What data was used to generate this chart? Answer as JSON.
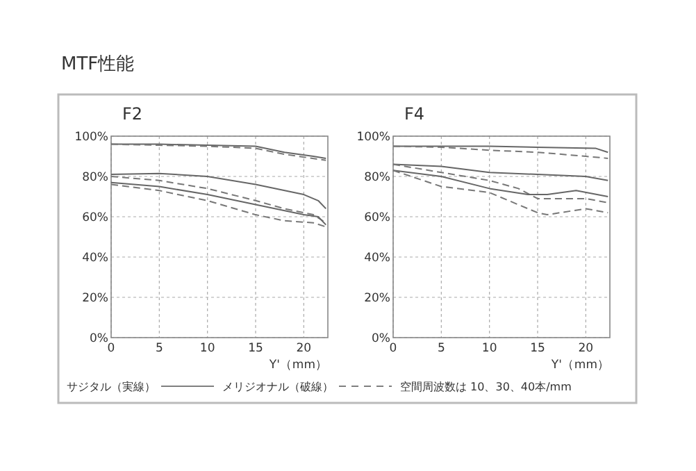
{
  "chart_data": [
    {
      "type": "line",
      "title": "F2",
      "xlabel": "Y'（mm）",
      "xlim": [
        0,
        22.5
      ],
      "xticks": [
        0,
        5,
        10,
        15,
        20
      ],
      "ylim": [
        0,
        100
      ],
      "yticks": [
        {
          "value": 0,
          "label": "0%"
        },
        {
          "value": 20,
          "label": "20%"
        },
        {
          "value": 40,
          "label": "40%"
        },
        {
          "value": 60,
          "label": "60%"
        },
        {
          "value": 80,
          "label": "80%"
        },
        {
          "value": 100,
          "label": "100%"
        }
      ],
      "grid": true,
      "marker": "none",
      "annotations": [
        "MTF性能",
        "サジタル（実線）",
        "メリジオナル（破線）",
        "空間周波数は 10、30、40本/mm"
      ],
      "series": [
        {
          "color": "#666666",
          "line_style": "solid",
          "x": [
            0,
            5,
            10,
            15,
            18,
            21,
            22.3
          ],
          "values": [
            96,
            96,
            95.5,
            95,
            92,
            90,
            89
          ]
        },
        {
          "color": "#777777",
          "line_style": "dashed",
          "x": [
            0,
            5,
            10,
            15,
            18,
            22.3
          ],
          "values": [
            96,
            95.5,
            95,
            94,
            91,
            88
          ]
        },
        {
          "color": "#666666",
          "line_style": "solid",
          "x": [
            0,
            5,
            10,
            15,
            20,
            21.5,
            22.3
          ],
          "values": [
            81,
            81.5,
            80,
            76,
            71,
            68,
            64
          ]
        },
        {
          "color": "#777777",
          "line_style": "dashed",
          "x": [
            0,
            5,
            10,
            15,
            18,
            21,
            22.3
          ],
          "values": [
            80,
            78,
            74,
            68,
            64,
            61,
            57
          ]
        },
        {
          "color": "#666666",
          "line_style": "solid",
          "x": [
            0,
            5,
            10,
            15,
            20,
            21.5,
            22.3
          ],
          "values": [
            77,
            75,
            71,
            66,
            61,
            60,
            56
          ]
        },
        {
          "color": "#777777",
          "line_style": "dashed",
          "x": [
            0,
            5,
            10,
            15,
            18,
            21,
            22.3
          ],
          "values": [
            76,
            73,
            68,
            61,
            58,
            57,
            55
          ]
        }
      ]
    },
    {
      "type": "line",
      "title": "F4",
      "xlabel": "Y'（mm）",
      "xlim": [
        0,
        22.5
      ],
      "xticks": [
        0,
        5,
        10,
        15,
        20
      ],
      "ylim": [
        0,
        100
      ],
      "yticks": [
        {
          "value": 0,
          "label": "0%"
        },
        {
          "value": 20,
          "label": "20%"
        },
        {
          "value": 40,
          "label": "40%"
        },
        {
          "value": 60,
          "label": "60%"
        },
        {
          "value": 80,
          "label": "80%"
        },
        {
          "value": 100,
          "label": "100%"
        }
      ],
      "grid": true,
      "marker": "none",
      "series": [
        {
          "color": "#666666",
          "line_style": "solid",
          "x": [
            0,
            10,
            15,
            21,
            22.3
          ],
          "values": [
            95,
            95,
            94.5,
            94,
            92
          ]
        },
        {
          "color": "#777777",
          "line_style": "dashed",
          "x": [
            0,
            5,
            10,
            15,
            20,
            22.3
          ],
          "values": [
            95,
            94.5,
            93,
            92,
            90,
            89
          ]
        },
        {
          "color": "#666666",
          "line_style": "solid",
          "x": [
            0,
            5,
            10,
            15,
            20,
            22.3
          ],
          "values": [
            86,
            85,
            82,
            81,
            80,
            78
          ]
        },
        {
          "color": "#777777",
          "line_style": "dashed",
          "x": [
            0,
            5,
            10,
            13,
            15,
            20,
            22.3
          ],
          "values": [
            86,
            82,
            78,
            74,
            69,
            69,
            67
          ]
        },
        {
          "color": "#666666",
          "line_style": "solid",
          "x": [
            0,
            5,
            10,
            14,
            16,
            19,
            22.3
          ],
          "values": [
            83,
            80,
            74,
            71,
            71,
            73,
            70
          ]
        },
        {
          "color": "#777777",
          "line_style": "dashed",
          "x": [
            0,
            5,
            10,
            15,
            16,
            20,
            22.3
          ],
          "values": [
            83,
            75,
            72,
            62,
            61,
            64,
            62
          ]
        }
      ]
    }
  ]
}
